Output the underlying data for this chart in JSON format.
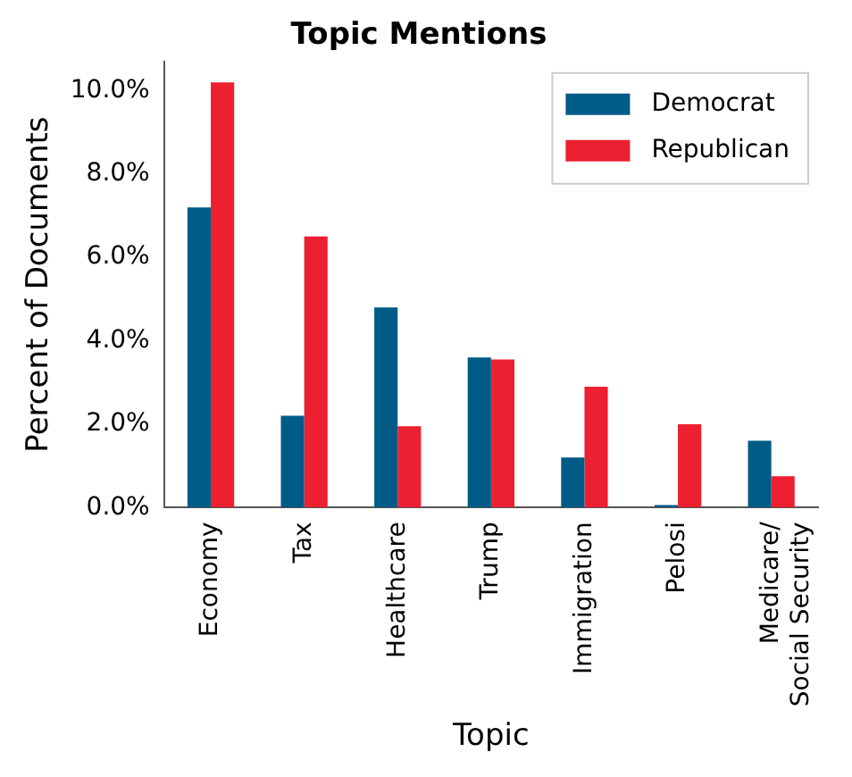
{
  "chart_data": {
    "type": "bar",
    "title": "Topic Mentions",
    "xlabel": "Topic",
    "ylabel": "Percent of Documents",
    "categories": [
      "Economy",
      "Tax",
      "Healthcare",
      "Trump",
      "Immigration",
      "Pelosi",
      "Medicare/\nSocial Security"
    ],
    "series": [
      {
        "name": "Democrat",
        "color": "#005b87",
        "values": [
          7.2,
          2.2,
          4.8,
          3.6,
          1.2,
          0.06,
          1.6
        ]
      },
      {
        "name": "Republican",
        "color": "#ec2030",
        "values": [
          10.2,
          6.5,
          1.95,
          3.55,
          2.9,
          2.0,
          0.75
        ]
      }
    ],
    "ylim": [
      0,
      10.7
    ],
    "yticks": [
      {
        "value": 0,
        "label": "0.0%"
      },
      {
        "value": 2,
        "label": "2.0%"
      },
      {
        "value": 4,
        "label": "4.0%"
      },
      {
        "value": 6,
        "label": "6.0%"
      },
      {
        "value": 8,
        "label": "8.0%"
      },
      {
        "value": 10,
        "label": "10.0%"
      }
    ],
    "grid": false,
    "legend": "top right"
  }
}
